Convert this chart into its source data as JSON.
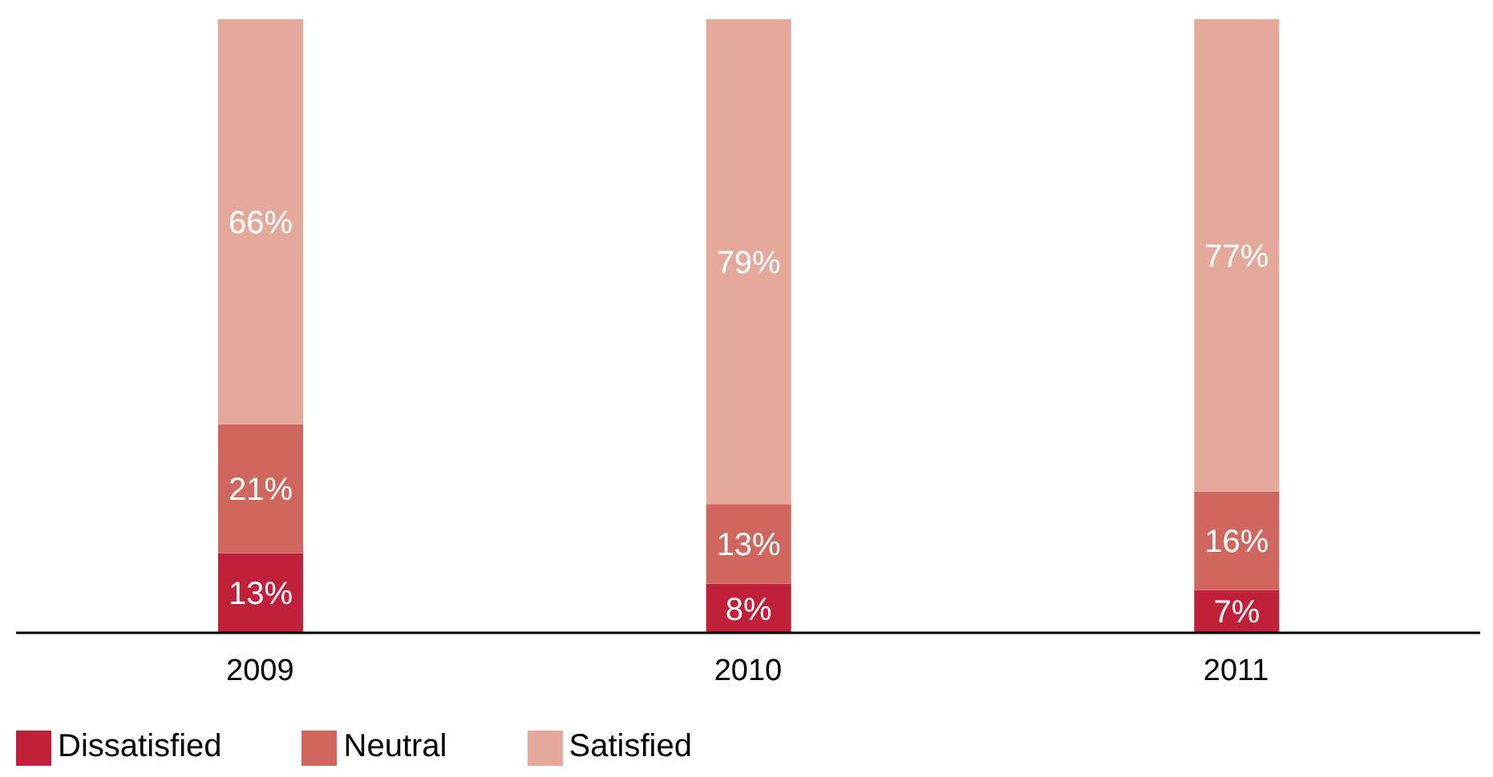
{
  "chart_data": {
    "type": "bar",
    "stacked": true,
    "categories": [
      "2009",
      "2010",
      "2011"
    ],
    "series": [
      {
        "name": "Dissatisfied",
        "color": "#c1203a",
        "values": [
          13,
          8,
          7
        ],
        "value_labels": [
          "13%",
          "8%",
          "7%"
        ]
      },
      {
        "name": "Neutral",
        "color": "#d0675e",
        "values": [
          21,
          13,
          16
        ],
        "value_labels": [
          "21%",
          "13%",
          "16%"
        ]
      },
      {
        "name": "Satisfied",
        "color": "#e5a99c",
        "values": [
          66,
          79,
          77
        ],
        "value_labels": [
          "66%",
          "79%",
          "77%"
        ]
      }
    ],
    "legend": "bottom left",
    "grid": false
  }
}
